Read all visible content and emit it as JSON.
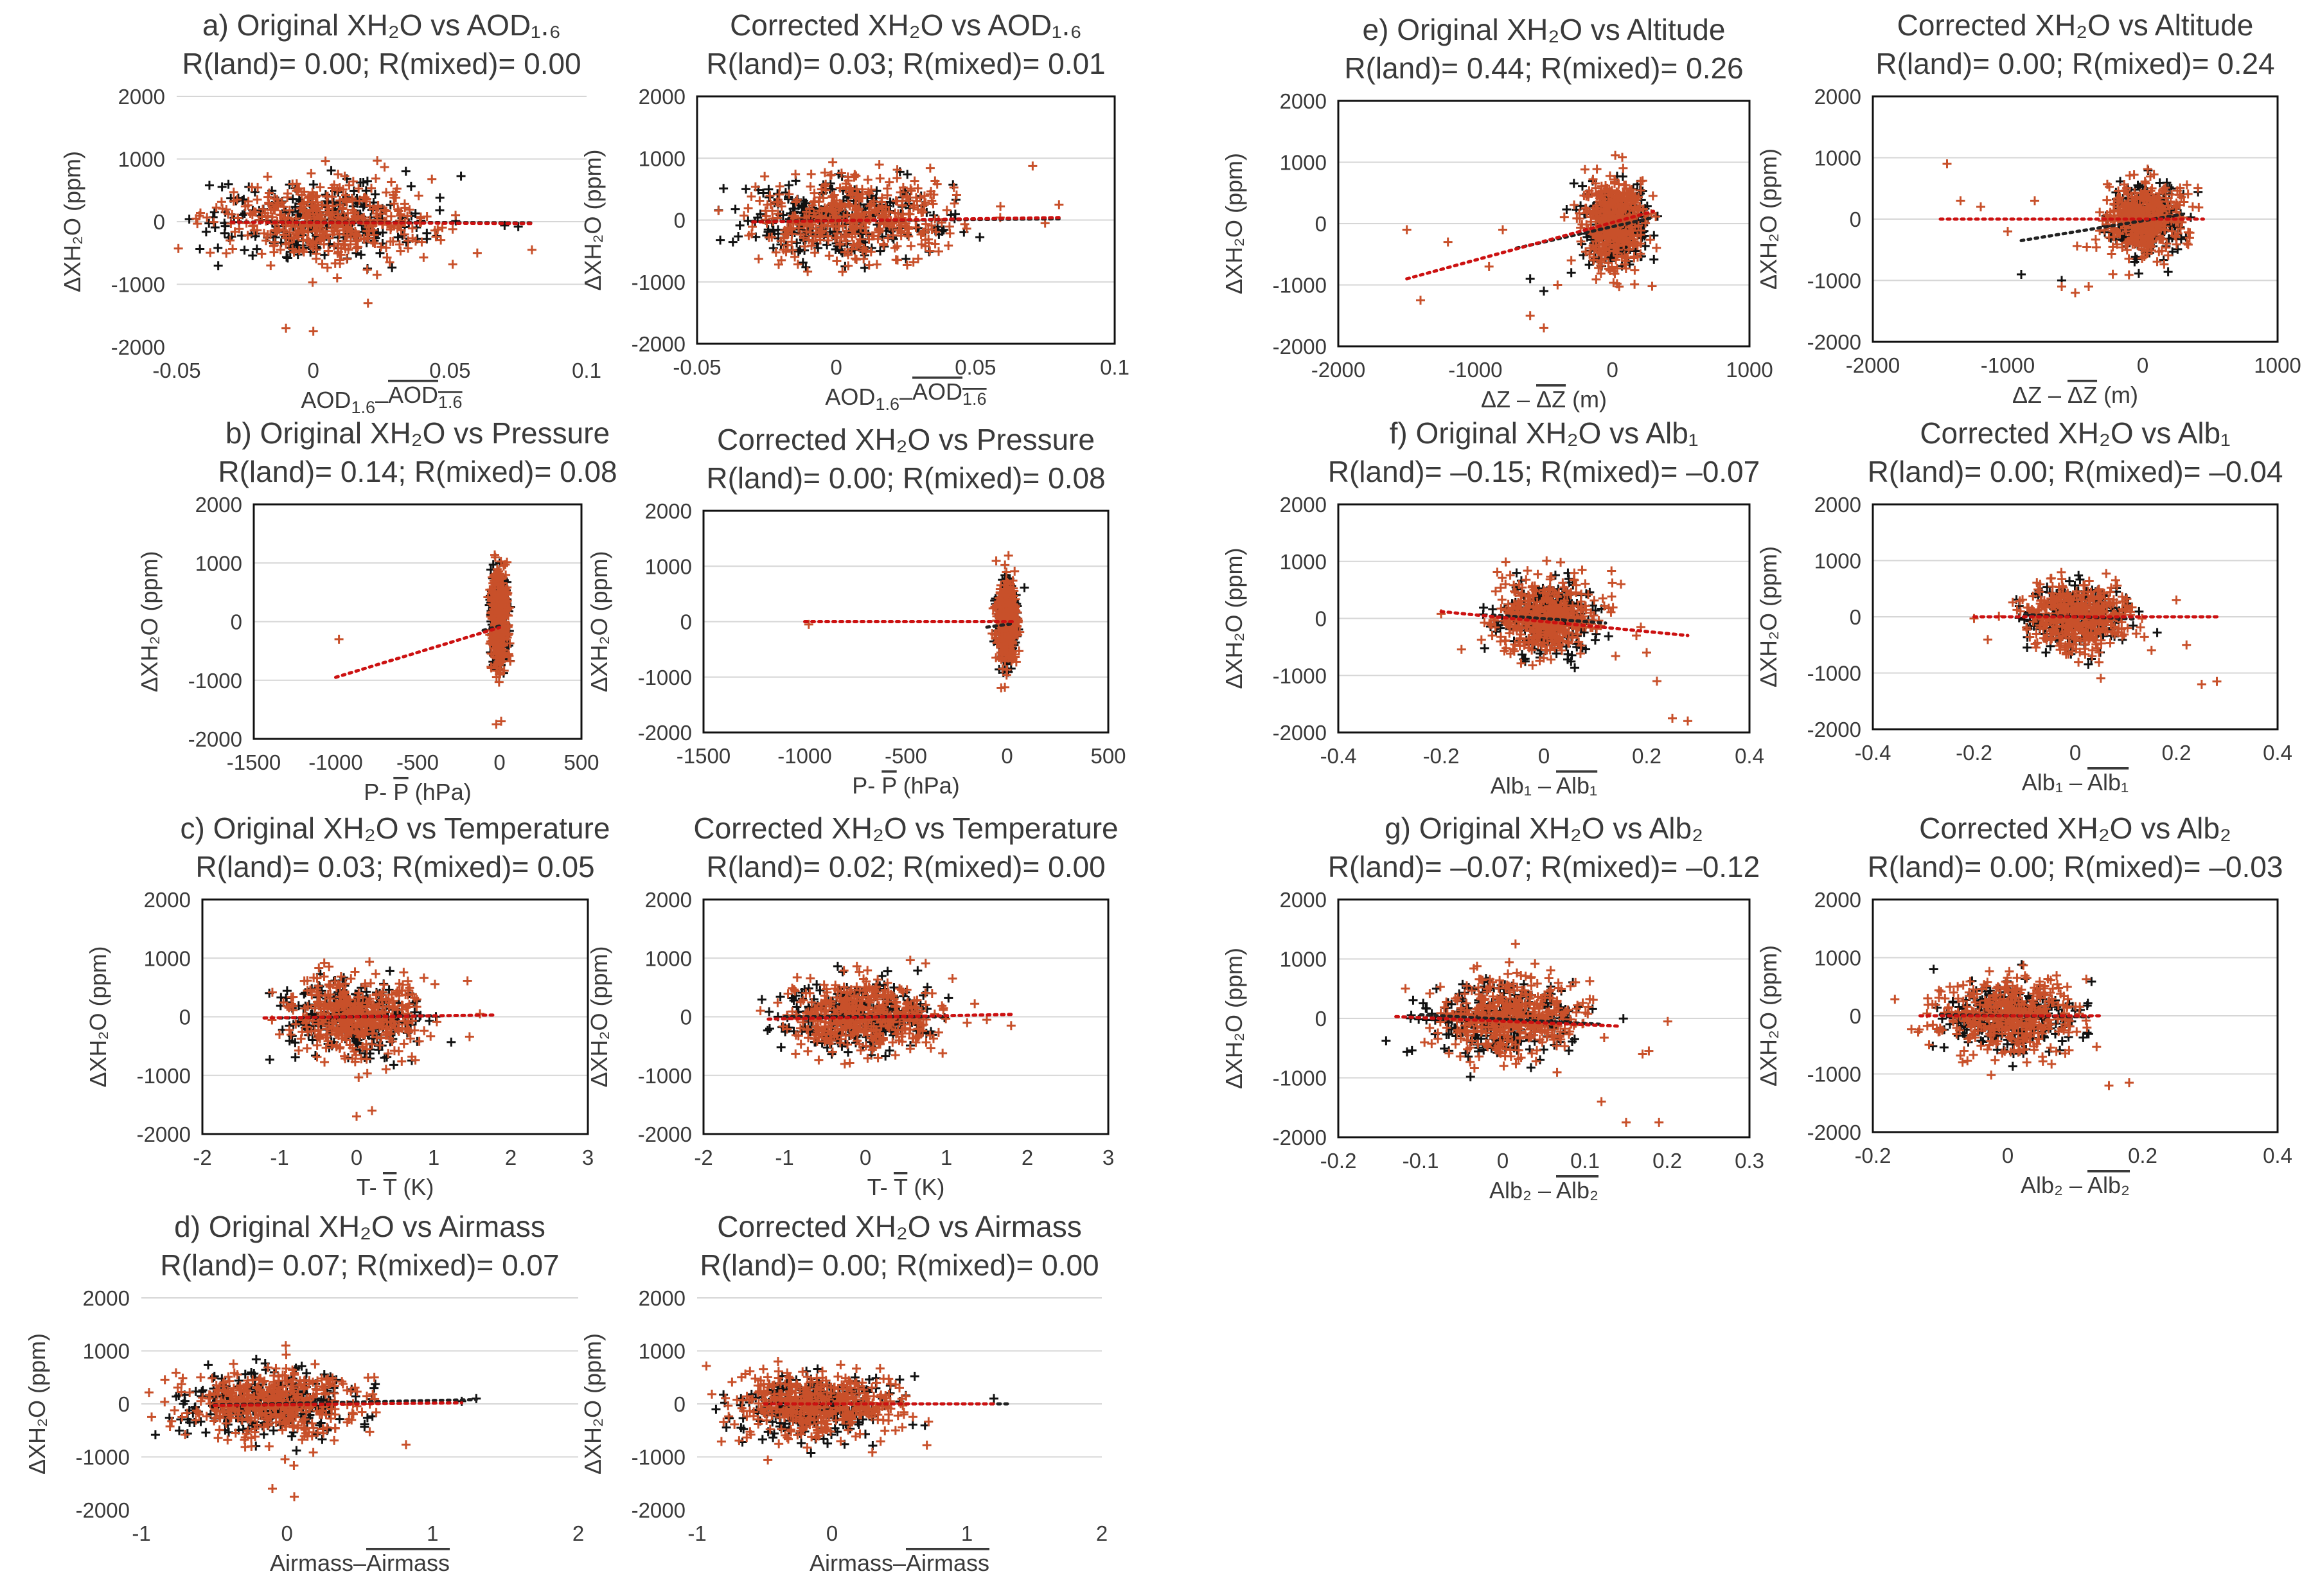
{
  "figure": {
    "colors": {
      "land": "#c8502a",
      "mixed": "#111111",
      "trend_land": "#cc1111",
      "trend_mixed": "#222222",
      "grid": "#d6d6d6"
    }
  },
  "chart_data": [
    {
      "id": "a-orig",
      "type": "scatter",
      "title": "a) Original XH₂O vs AOD₁.₆",
      "r_line": "R(land)= 0.00; R(mixed)= 0.00",
      "ylabel": "ΔXH₂O (ppm)",
      "xlabel": "AOD₁.₆–AOD₁.₆ (overline)",
      "xlabel_parts": [
        "AOD",
        "1.6",
        "–",
        "AOD",
        "1.6"
      ],
      "xlim": [
        -0.05,
        0.1
      ],
      "ylim": [
        -2000,
        2000
      ],
      "xticks": [
        "-0.05",
        "0",
        "0.05",
        "0.1"
      ],
      "yticks": [
        "2000",
        "1000",
        "0",
        "-1000",
        "-2000"
      ],
      "frame": false,
      "trend_land": [
        [
          -0.03,
          -10
        ],
        [
          0.08,
          -30
        ]
      ],
      "trend_mixed": [
        [
          -0.03,
          -5
        ],
        [
          0.08,
          -20
        ]
      ],
      "land": {
        "cx": 0.005,
        "sx": 0.018,
        "sy": 330,
        "n": 420,
        "extra": [
          [
            -0.01,
            -1700
          ],
          [
            0.0,
            -1750
          ],
          [
            0.02,
            -1300
          ],
          [
            0.06,
            -500
          ],
          [
            0.08,
            -450
          ]
        ]
      },
      "mixed": {
        "cx": 0.0,
        "sx": 0.02,
        "sy": 300,
        "n": 260,
        "extra": [
          [
            0.07,
            -60
          ],
          [
            0.075,
            -80
          ]
        ]
      }
    },
    {
      "id": "a-corr",
      "type": "scatter",
      "title": "Corrected XH₂O vs AOD₁.₆",
      "r_line": "R(land)= 0.03; R(mixed)= 0.01",
      "ylabel": "ΔXH₂O (ppm)",
      "xlabel_parts": [
        "AOD",
        "1.6",
        "–",
        "AOD",
        "1.6"
      ],
      "xlim": [
        -0.05,
        0.1
      ],
      "ylim": [
        -2000,
        2000
      ],
      "xticks": [
        "-0.05",
        "0",
        "0.05",
        "0.1"
      ],
      "yticks": [
        "2000",
        "1000",
        "0",
        "-1000",
        "-2000"
      ],
      "frame": true,
      "trend_land": [
        [
          -0.03,
          -30
        ],
        [
          0.08,
          40
        ]
      ],
      "trend_mixed": [
        [
          -0.03,
          -20
        ],
        [
          0.08,
          20
        ]
      ],
      "land": {
        "cx": 0.005,
        "sx": 0.018,
        "sy": 320,
        "n": 420,
        "extra": [
          [
            0.08,
            250
          ],
          [
            0.075,
            -50
          ]
        ]
      },
      "mixed": {
        "cx": 0.0,
        "sx": 0.02,
        "sy": 300,
        "n": 260,
        "extra": []
      }
    },
    {
      "id": "e-orig",
      "type": "scatter",
      "title": "e) Original XH₂O vs Altitude",
      "r_line": "R(land)= 0.44; R(mixed)= 0.26",
      "ylabel": "ΔXH₂O (ppm)",
      "xlabel_parts": [
        "ΔZ – ",
        "ΔZ",
        " (m)"
      ],
      "xlim": [
        -2000,
        1000
      ],
      "ylim": [
        -2000,
        2000
      ],
      "xticks": [
        "-2000",
        "-1000",
        "0",
        "1000"
      ],
      "yticks": [
        "2000",
        "1000",
        "0",
        "-1000",
        "-2000"
      ],
      "frame": true,
      "trend_land": [
        [
          -1500,
          -900
        ],
        [
          300,
          200
        ]
      ],
      "trend_mixed": [
        [
          -700,
          -400
        ],
        [
          300,
          100
        ]
      ],
      "land": {
        "cx": 20,
        "sx": 110,
        "sy": 380,
        "n": 420,
        "extra": [
          [
            -1400,
            -1250
          ],
          [
            -1500,
            -100
          ],
          [
            -1200,
            -300
          ],
          [
            -900,
            -700
          ],
          [
            -600,
            -1500
          ],
          [
            -500,
            -1700
          ],
          [
            -400,
            -1000
          ],
          [
            -800,
            -100
          ],
          [
            -300,
            -600
          ]
        ]
      },
      "mixed": {
        "cx": 30,
        "sx": 120,
        "sy": 320,
        "n": 260,
        "extra": [
          [
            -600,
            -900
          ],
          [
            -500,
            -1100
          ],
          [
            -300,
            -800
          ]
        ]
      }
    },
    {
      "id": "e-corr",
      "type": "scatter",
      "title": "Corrected XH₂O vs Altitude",
      "r_line": "R(land)= 0.00; R(mixed)= 0.24",
      "ylabel": "ΔXH₂O (ppm)",
      "xlabel_parts": [
        "ΔZ – ",
        "ΔZ",
        " (m)"
      ],
      "xlim": [
        -2000,
        1000
      ],
      "ylim": [
        -2000,
        2000
      ],
      "xticks": [
        "-2000",
        "-1000",
        "0",
        "1000"
      ],
      "yticks": [
        "2000",
        "1000",
        "0",
        "-1000",
        "-2000"
      ],
      "frame": true,
      "trend_land": [
        [
          -1500,
          0
        ],
        [
          450,
          0
        ]
      ],
      "trend_mixed": [
        [
          -900,
          -350
        ],
        [
          300,
          80
        ]
      ],
      "land": {
        "cx": 0,
        "sx": 140,
        "sy": 300,
        "n": 420,
        "extra": [
          [
            -1450,
            900
          ],
          [
            -1350,
            300
          ],
          [
            -1200,
            200
          ],
          [
            -800,
            300
          ],
          [
            -600,
            -1100
          ],
          [
            -500,
            -1200
          ],
          [
            -1000,
            -200
          ],
          [
            -400,
            -1100
          ]
        ]
      },
      "mixed": {
        "cx": 20,
        "sx": 130,
        "sy": 280,
        "n": 260,
        "extra": [
          [
            -900,
            -900
          ],
          [
            -600,
            -1000
          ]
        ]
      }
    },
    {
      "id": "b-orig",
      "type": "scatter",
      "title": "b) Original XH₂O vs Pressure",
      "r_line": "R(land)= 0.14; R(mixed)= 0.08",
      "ylabel": "ΔXH₂O (ppm)",
      "xlabel_parts": [
        "P- ",
        "P",
        " (hPa)"
      ],
      "xlim": [
        -1500,
        500
      ],
      "ylim": [
        -2000,
        2000
      ],
      "xticks": [
        "-1500",
        "-1000",
        "-500",
        "0",
        "500"
      ],
      "yticks": [
        "2000",
        "1000",
        "0",
        "-1000",
        "-2000"
      ],
      "frame": true,
      "trend_land": [
        [
          -1000,
          -950
        ],
        [
          0,
          -100
        ]
      ],
      "trend_mixed": [
        [
          -100,
          -150
        ],
        [
          20,
          -60
        ]
      ],
      "land": {
        "cx": 0,
        "sx": 25,
        "sy": 420,
        "n": 420,
        "extra": [
          [
            -980,
            -300
          ],
          [
            -20,
            -1750
          ],
          [
            10,
            -1700
          ]
        ]
      },
      "mixed": {
        "cx": 0,
        "sx": 25,
        "sy": 380,
        "n": 260,
        "extra": []
      }
    },
    {
      "id": "b-corr",
      "type": "scatter",
      "title": "Corrected XH₂O vs Pressure",
      "r_line": "R(land)= 0.00; R(mixed)= 0.08",
      "ylabel": "ΔXH₂O (ppm)",
      "xlabel_parts": [
        "P- ",
        "P",
        " (hPa)"
      ],
      "xlim": [
        -1500,
        500
      ],
      "ylim": [
        -2000,
        2000
      ],
      "xticks": [
        "-1500",
        "-1000",
        "-500",
        "0",
        "500"
      ],
      "yticks": [
        "2000",
        "1000",
        "0",
        "-1000",
        "-2000"
      ],
      "frame": true,
      "trend_land": [
        [
          -1000,
          0
        ],
        [
          30,
          0
        ]
      ],
      "trend_mixed": [
        [
          -100,
          -100
        ],
        [
          20,
          -40
        ]
      ],
      "land": {
        "cx": 0,
        "sx": 25,
        "sy": 380,
        "n": 420,
        "extra": [
          [
            -980,
            -50
          ]
        ]
      },
      "mixed": {
        "cx": 0,
        "sx": 25,
        "sy": 360,
        "n": 260,
        "extra": []
      }
    },
    {
      "id": "f-orig",
      "type": "scatter",
      "title": "f) Original XH₂O vs Alb₁",
      "r_line": "R(land)= –0.15; R(mixed)= –0.07",
      "ylabel": "ΔXH₂O (ppm)",
      "xlabel_parts": [
        "Alb₁ – ",
        "Alb₁",
        ""
      ],
      "xlim": [
        -0.4,
        0.4
      ],
      "ylim": [
        -2000,
        2000
      ],
      "xticks": [
        "-0.4",
        "-0.2",
        "0",
        "0.2",
        "0.4"
      ],
      "yticks": [
        "2000",
        "1000",
        "0",
        "-1000",
        "-2000"
      ],
      "frame": true,
      "trend_land": [
        [
          -0.2,
          120
        ],
        [
          0.28,
          -300
        ]
      ],
      "trend_mixed": [
        [
          -0.1,
          60
        ],
        [
          0.12,
          -80
        ]
      ],
      "land": {
        "cx": 0.0,
        "sx": 0.05,
        "sy": 330,
        "n": 420,
        "extra": [
          [
            0.25,
            -1750
          ],
          [
            0.28,
            -1800
          ],
          [
            0.22,
            -1100
          ],
          [
            0.2,
            -600
          ],
          [
            0.18,
            -300
          ],
          [
            -0.2,
            80
          ],
          [
            0.15,
            600
          ]
        ]
      },
      "mixed": {
        "cx": 0.0,
        "sx": 0.045,
        "sy": 300,
        "n": 260,
        "extra": []
      }
    },
    {
      "id": "f-corr",
      "type": "scatter",
      "title": "Corrected XH₂O vs Alb₁",
      "r_line": "R(land)= 0.00; R(mixed)= –0.04",
      "ylabel": "ΔXH₂O (ppm)",
      "xlabel_parts": [
        "Alb₁ – ",
        "Alb₁",
        ""
      ],
      "xlim": [
        -0.4,
        0.4
      ],
      "ylim": [
        -2000,
        2000
      ],
      "xticks": [
        "-0.4",
        "-0.2",
        "0",
        "0.2",
        "0.4"
      ],
      "yticks": [
        "2000",
        "1000",
        "0",
        "-1000",
        "-2000"
      ],
      "frame": true,
      "trend_land": [
        [
          -0.2,
          0
        ],
        [
          0.28,
          0
        ]
      ],
      "trend_mixed": [
        [
          -0.1,
          40
        ],
        [
          0.12,
          -40
        ]
      ],
      "land": {
        "cx": 0.0,
        "sx": 0.05,
        "sy": 300,
        "n": 420,
        "extra": [
          [
            0.25,
            -1200
          ],
          [
            0.28,
            -1150
          ],
          [
            0.22,
            -500
          ],
          [
            0.2,
            300
          ],
          [
            -0.2,
            -30
          ]
        ]
      },
      "mixed": {
        "cx": 0.0,
        "sx": 0.045,
        "sy": 280,
        "n": 260,
        "extra": []
      }
    },
    {
      "id": "c-orig",
      "type": "scatter",
      "title": "c) Original XH₂O vs Temperature",
      "r_line": "R(land)= 0.03; R(mixed)= 0.05",
      "ylabel": "ΔXH₂O (ppm)",
      "xlabel_parts": [
        "T- ",
        "T",
        " (K)"
      ],
      "xlim": [
        -2,
        3
      ],
      "ylim": [
        -2000,
        2000
      ],
      "xticks": [
        "-2",
        "-1",
        "0",
        "1",
        "2",
        "3"
      ],
      "yticks": [
        "2000",
        "1000",
        "0",
        "-1000",
        "-2000"
      ],
      "frame": true,
      "trend_land": [
        [
          -1.2,
          -20
        ],
        [
          1.8,
          30
        ]
      ],
      "trend_mixed": [
        [
          -1.0,
          -20
        ],
        [
          1.0,
          20
        ]
      ],
      "land": {
        "cx": 0.0,
        "sx": 0.45,
        "sy": 330,
        "n": 420,
        "extra": [
          [
            0.0,
            -1700
          ],
          [
            0.2,
            -1600
          ],
          [
            1.6,
            50
          ],
          [
            -1.0,
            -300
          ]
        ]
      },
      "mixed": {
        "cx": -0.05,
        "sx": 0.45,
        "sy": 300,
        "n": 260,
        "extra": []
      }
    },
    {
      "id": "c-corr",
      "type": "scatter",
      "title": "Corrected XH₂O vs Temperature",
      "r_line": "R(land)= 0.02; R(mixed)= 0.00",
      "ylabel": "ΔXH₂O (ppm)",
      "xlabel_parts": [
        "T- ",
        "T",
        " (K)"
      ],
      "xlim": [
        -2,
        3
      ],
      "ylim": [
        -2000,
        2000
      ],
      "xticks": [
        "-2",
        "-1",
        "0",
        "1",
        "2",
        "3"
      ],
      "yticks": [
        "2000",
        "1000",
        "0",
        "-1000",
        "-2000"
      ],
      "frame": true,
      "trend_land": [
        [
          -1.2,
          -40
        ],
        [
          1.8,
          40
        ]
      ],
      "trend_mixed": [
        [
          -1.0,
          0
        ],
        [
          1.0,
          0
        ]
      ],
      "land": {
        "cx": 0.0,
        "sx": 0.45,
        "sy": 300,
        "n": 420,
        "extra": [
          [
            1.8,
            -150
          ],
          [
            1.5,
            -50
          ]
        ]
      },
      "mixed": {
        "cx": -0.05,
        "sx": 0.45,
        "sy": 290,
        "n": 260,
        "extra": []
      }
    },
    {
      "id": "g-orig",
      "type": "scatter",
      "title": "g) Original XH₂O vs Alb₂",
      "r_line": "R(land)= –0.07; R(mixed)= –0.12",
      "ylabel": "ΔXH₂O (ppm)",
      "xlabel_parts": [
        "Alb₂ – ",
        "Alb₂",
        ""
      ],
      "xlim": [
        -0.2,
        0.3
      ],
      "ylim": [
        -2000,
        2000
      ],
      "xticks": [
        "-0.2",
        "-0.1",
        "0",
        "0.1",
        "0.2",
        "0.3"
      ],
      "yticks": [
        "2000",
        "1000",
        "0",
        "-1000",
        "-2000"
      ],
      "frame": true,
      "trend_land": [
        [
          -0.13,
          30
        ],
        [
          0.14,
          -130
        ]
      ],
      "trend_mixed": [
        [
          -0.1,
          60
        ],
        [
          0.12,
          -100
        ]
      ],
      "land": {
        "cx": 0.01,
        "sx": 0.045,
        "sy": 330,
        "n": 420,
        "extra": [
          [
            0.15,
            -1750
          ],
          [
            0.19,
            -1750
          ],
          [
            0.12,
            -1400
          ],
          [
            0.17,
            -600
          ]
        ]
      },
      "mixed": {
        "cx": 0.0,
        "sx": 0.045,
        "sy": 300,
        "n": 260,
        "extra": []
      }
    },
    {
      "id": "g-corr",
      "type": "scatter",
      "title": "Corrected XH₂O vs Alb₂",
      "r_line": "R(land)= 0.00; R(mixed)= –0.03",
      "ylabel": "ΔXH₂O (ppm)",
      "xlabel_parts": [
        "Alb₂ – ",
        "Alb₂",
        ""
      ],
      "xlim": [
        -0.2,
        0.4
      ],
      "ylim": [
        -2000,
        2000
      ],
      "xticks": [
        "-0.2",
        "0",
        "0.2",
        "0.4"
      ],
      "yticks": [
        "2000",
        "1000",
        "0",
        "-1000",
        "-2000"
      ],
      "frame": true,
      "trend_land": [
        [
          -0.13,
          0
        ],
        [
          0.14,
          0
        ]
      ],
      "trend_mixed": [
        [
          -0.1,
          20
        ],
        [
          0.12,
          -20
        ]
      ],
      "land": {
        "cx": 0.0,
        "sx": 0.05,
        "sy": 300,
        "n": 420,
        "extra": [
          [
            0.18,
            -1150
          ],
          [
            0.15,
            -1200
          ]
        ]
      },
      "mixed": {
        "cx": 0.0,
        "sx": 0.05,
        "sy": 290,
        "n": 260,
        "extra": []
      }
    },
    {
      "id": "d-orig",
      "type": "scatter",
      "title": "d) Original XH₂O vs Airmass",
      "r_line": "R(land)= 0.07; R(mixed)= 0.07",
      "ylabel": "ΔXH₂O (ppm)",
      "xlabel_parts": [
        "Airmass–",
        "Airmass",
        ""
      ],
      "xlim": [
        -1,
        2
      ],
      "ylim": [
        -2000,
        2000
      ],
      "xticks": [
        "-1",
        "0",
        "1",
        "2"
      ],
      "yticks": [
        "2000",
        "1000",
        "0",
        "-1000",
        "-2000"
      ],
      "frame": false,
      "trend_land": [
        [
          -0.5,
          -30
        ],
        [
          1.2,
          20
        ]
      ],
      "trend_mixed": [
        [
          -0.5,
          -20
        ],
        [
          1.3,
          80
        ]
      ],
      "land": {
        "cx": -0.1,
        "sx": 0.3,
        "sy": 330,
        "n": 420,
        "extra": [
          [
            0.05,
            -1750
          ],
          [
            -0.1,
            -1600
          ],
          [
            0.6,
            500
          ]
        ]
      },
      "mixed": {
        "cx": -0.15,
        "sx": 0.3,
        "sy": 300,
        "n": 260,
        "extra": [
          [
            1.2,
            50
          ],
          [
            1.3,
            100
          ]
        ]
      }
    },
    {
      "id": "d-corr",
      "type": "scatter",
      "title": "Corrected XH₂O vs Airmass",
      "r_line": "R(land)= 0.00; R(mixed)= 0.00",
      "ylabel": "ΔXH₂O (ppm)",
      "xlabel_parts": [
        "Airmass–",
        "Airmass",
        ""
      ],
      "xlim": [
        -1,
        2
      ],
      "ylim": [
        -2000,
        2000
      ],
      "xticks": [
        "-1",
        "0",
        "1",
        "2"
      ],
      "yticks": [
        "2000",
        "1000",
        "0",
        "-1000",
        "-2000"
      ],
      "frame": false,
      "trend_land": [
        [
          -0.5,
          0
        ],
        [
          1.2,
          0
        ]
      ],
      "trend_mixed": [
        [
          -0.5,
          0
        ],
        [
          1.3,
          0
        ]
      ],
      "land": {
        "cx": -0.1,
        "sx": 0.3,
        "sy": 300,
        "n": 420,
        "extra": [
          [
            -0.4,
            800
          ],
          [
            0.5,
            300
          ]
        ]
      },
      "mixed": {
        "cx": -0.15,
        "sx": 0.3,
        "sy": 290,
        "n": 260,
        "extra": [
          [
            1.2,
            100
          ]
        ]
      }
    }
  ]
}
